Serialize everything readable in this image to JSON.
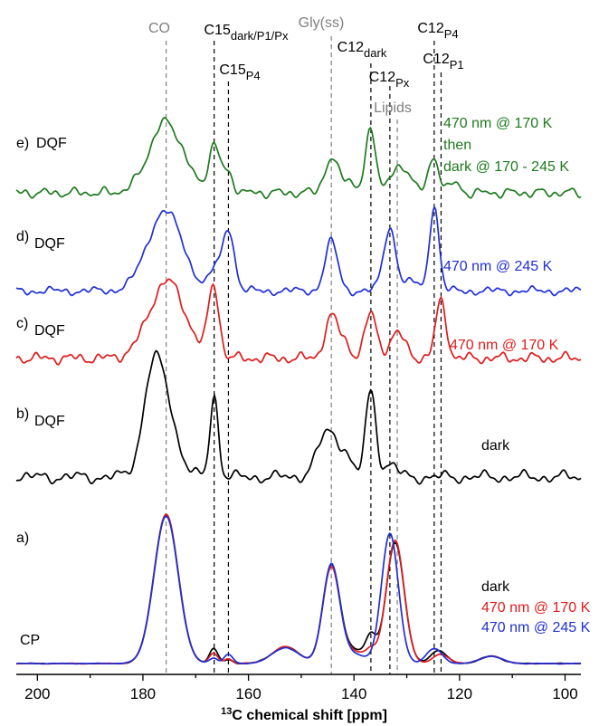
{
  "chart_data": {
    "type": "line",
    "xlabel_sup": "13",
    "xlabel": "C chemical shift [ppm]",
    "xlim": [
      204,
      97
    ],
    "x_ticks": [
      200,
      180,
      160,
      140,
      120,
      100
    ],
    "x_tick_labels": [
      "200",
      "180",
      "160",
      "140",
      "120",
      "100"
    ],
    "reference_lines": [
      {
        "base": "CO",
        "sub": "",
        "sub2": "",
        "ppm": 175.6,
        "color": "#808080"
      },
      {
        "base": "C15",
        "sub": "dark/P1/Px",
        "sub2": "",
        "ppm": 166.5,
        "color": "#000000"
      },
      {
        "base": "C15",
        "sub": "P4",
        "sub2": "",
        "ppm": 163.8,
        "color": "#000000"
      },
      {
        "base": "Gly(ss)",
        "sub": "",
        "sub2": "",
        "ppm": 144.3,
        "color": "#808080"
      },
      {
        "base": "C12",
        "sub": "dark",
        "sub2": "",
        "ppm": 136.8,
        "color": "#000000"
      },
      {
        "base": "C12",
        "sub": "Px",
        "sub2": "",
        "ppm": 133.2,
        "color": "#000000"
      },
      {
        "base": "Lipids",
        "sub": "",
        "sub2": "",
        "ppm": 131.8,
        "color": "#808080"
      },
      {
        "base": "C12",
        "sub": "P4",
        "sub2": "",
        "ppm": 124.8,
        "color": "#000000"
      },
      {
        "base": "C12",
        "sub": "P1",
        "sub2": "",
        "ppm": 123.5,
        "color": "#000000"
      }
    ],
    "panels": [
      {
        "id": "e",
        "label": "e)",
        "method": "DQF",
        "baseline": 0.0,
        "conditions": [
          {
            "text": "470 nm @ 170 K",
            "color": "#1e7a1e"
          },
          {
            "text": "then",
            "color": "#1e7a1e"
          },
          {
            "text": "dark @ 170 - 245 K",
            "color": "#1e7a1e"
          }
        ],
        "series": [
          {
            "color": "#1e7a1e",
            "noise_amp": 0.18,
            "seed": 5,
            "peaks": [
              [
                175.6,
                4.6,
                3.2
              ],
              [
                166.5,
                3.0,
                1.1
              ],
              [
                163.8,
                1.2,
                1.0
              ],
              [
                144.3,
                2.2,
                1.3
              ],
              [
                141.0,
                0.9,
                1.0
              ],
              [
                136.8,
                4.0,
                1.0
              ],
              [
                131.8,
                1.4,
                1.6
              ],
              [
                129.5,
                0.9,
                1.0
              ],
              [
                124.8,
                2.3,
                1.0
              ],
              [
                121.0,
                0.6,
                1.0
              ]
            ]
          }
        ]
      },
      {
        "id": "d",
        "label": "d)",
        "method": "DQF",
        "baseline": -0.2,
        "conditions": [
          {
            "text": "470 nm @ 245 K",
            "color": "#1f2fd6"
          }
        ],
        "series": [
          {
            "color": "#1f2fd6",
            "noise_amp": 0.15,
            "seed": 11,
            "peaks": [
              [
                175.8,
                5.2,
                3.3
              ],
              [
                166.4,
                1.3,
                1.0
              ],
              [
                163.8,
                4.1,
                1.1
              ],
              [
                144.3,
                3.2,
                1.2
              ],
              [
                133.2,
                4.1,
                1.2
              ],
              [
                124.8,
                5.6,
                0.9
              ],
              [
                129.0,
                0.6,
                1.2
              ]
            ]
          }
        ]
      },
      {
        "id": "c",
        "label": "c)",
        "method": "DQF",
        "baseline": -0.1,
        "conditions": [
          {
            "text": "470 nm @ 170 K",
            "color": "#e01b1b"
          }
        ],
        "series": [
          {
            "color": "#e01b1b",
            "noise_amp": 0.2,
            "seed": 23,
            "peaks": [
              [
                175.4,
                5.0,
                3.4
              ],
              [
                166.6,
                4.7,
                1.0
              ],
              [
                144.2,
                2.7,
                1.3
              ],
              [
                141.5,
                0.8,
                1.0
              ],
              [
                136.8,
                2.9,
                1.1
              ],
              [
                131.8,
                1.6,
                1.5
              ],
              [
                123.5,
                3.7,
                1.0
              ]
            ]
          }
        ]
      },
      {
        "id": "b",
        "label": "b)",
        "method": "DQF",
        "baseline": 0.0,
        "conditions": [
          {
            "text": "dark",
            "color": "#000000"
          }
        ],
        "series": [
          {
            "color": "#000000",
            "noise_amp": 0.22,
            "seed": 37,
            "peaks": [
              [
                176.8,
                6.5,
                2.5
              ],
              [
                178.6,
                2.0,
                1.5
              ],
              [
                166.5,
                5.3,
                0.8
              ],
              [
                144.8,
                3.0,
                2.0
              ],
              [
                141.5,
                1.0,
                1.0
              ],
              [
                136.8,
                5.6,
                1.0
              ],
              [
                133.0,
                0.8,
                1.2
              ]
            ]
          }
        ]
      },
      {
        "id": "a",
        "label": "a)",
        "method": "CP",
        "baseline": 0.0,
        "conditions": [
          {
            "text": "dark",
            "color": "#000000"
          },
          {
            "text": "470 nm @ 170 K",
            "color": "#e01b1b"
          },
          {
            "text": "470 nm @ 245 K",
            "color": "#1f2fd6"
          }
        ],
        "series": [
          {
            "color": "#000000",
            "noise_amp": 0.02,
            "seed": 41,
            "peaks": [
              [
                175.6,
                16.0,
                2.3
              ],
              [
                166.6,
                1.6,
                0.8
              ],
              [
                163.8,
                0.4,
                0.8
              ],
              [
                153.0,
                1.8,
                2.5
              ],
              [
                144.3,
                10.5,
                1.6
              ],
              [
                140.0,
                1.4,
                2.0
              ],
              [
                136.8,
                2.6,
                1.0
              ],
              [
                132.2,
                13.0,
                1.7
              ],
              [
                124.0,
                1.4,
                1.5
              ],
              [
                114.0,
                0.8,
                2.0
              ]
            ]
          },
          {
            "color": "#e01b1b",
            "noise_amp": 0.02,
            "seed": 43,
            "peaks": [
              [
                175.6,
                16.0,
                2.3
              ],
              [
                166.6,
                1.1,
                0.8
              ],
              [
                163.8,
                0.5,
                0.8
              ],
              [
                153.0,
                1.8,
                2.5
              ],
              [
                144.3,
                10.3,
                1.6
              ],
              [
                140.0,
                1.2,
                2.0
              ],
              [
                136.8,
                1.2,
                1.0
              ],
              [
                132.2,
                13.2,
                1.7
              ],
              [
                123.5,
                1.0,
                1.5
              ],
              [
                114.0,
                0.8,
                2.0
              ]
            ]
          },
          {
            "color": "#1f2fd6",
            "noise_amp": 0.02,
            "seed": 47,
            "peaks": [
              [
                175.6,
                15.8,
                2.3
              ],
              [
                166.6,
                0.6,
                0.8
              ],
              [
                163.8,
                1.0,
                0.8
              ],
              [
                153.0,
                1.7,
                2.5
              ],
              [
                144.3,
                10.6,
                1.6
              ],
              [
                140.0,
                1.0,
                2.0
              ],
              [
                133.2,
                14.0,
                1.6
              ],
              [
                124.8,
                1.6,
                1.5
              ],
              [
                114.0,
                0.8,
                2.0
              ]
            ]
          }
        ]
      }
    ]
  }
}
